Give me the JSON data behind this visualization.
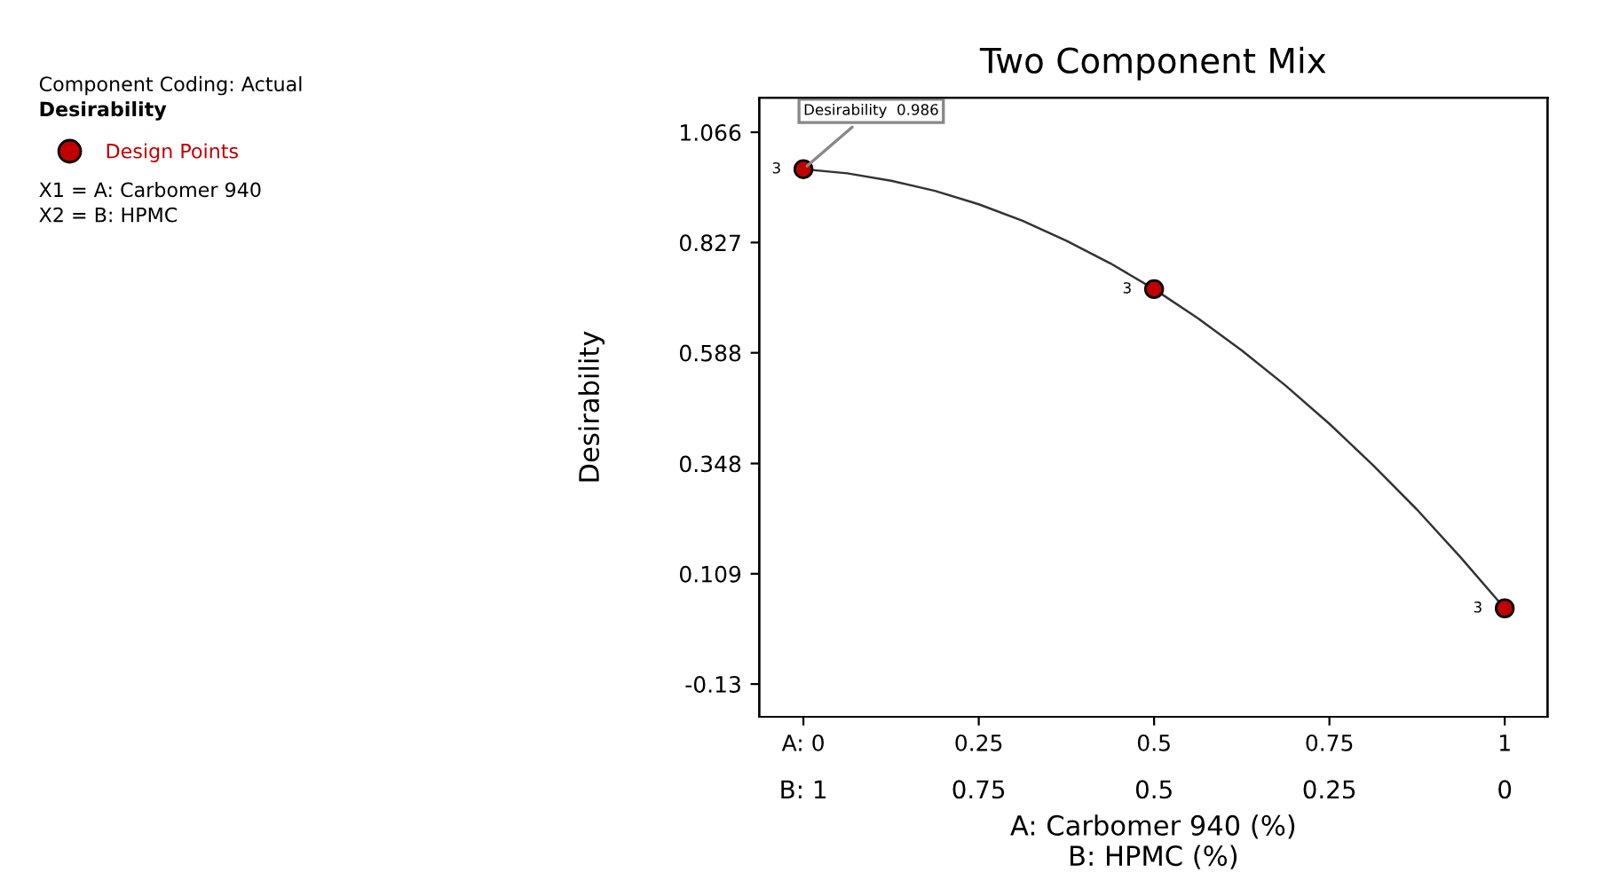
{
  "chart_data": {
    "type": "scatter",
    "title": "Two Component Mix",
    "xlabel": "A: Carbomer 940 (%)\nB: HPMC (%)",
    "ylabel": "Desirability",
    "x": [
      0,
      0.5,
      1
    ],
    "series": [
      {
        "name": "Design Points",
        "color": "#c00000",
        "values": [
          0.986,
          0.726,
          0.034
        ]
      },
      {
        "type": "line",
        "marker": "none",
        "color": "#333333",
        "x": [
          0,
          0.0625,
          0.125,
          0.1875,
          0.25,
          0.3125,
          0.375,
          0.4375,
          0.5,
          0.5625,
          0.625,
          0.6875,
          0.75,
          0.8125,
          0.875,
          0.9375,
          1
        ],
        "values": [
          0.986,
          0.977,
          0.961,
          0.939,
          0.91,
          0.874,
          0.831,
          0.782,
          0.726,
          0.663,
          0.593,
          0.517,
          0.434,
          0.344,
          0.248,
          0.144,
          0.034
        ]
      }
    ],
    "xlim": [
      -0.063,
      1.061
    ],
    "ylim": [
      -0.201,
      1.141
    ],
    "xticks": [
      {
        "value": 0,
        "label": "A: 0"
      },
      0.25,
      0.5,
      0.75,
      1
    ],
    "x2lim": [
      1.063,
      -0.061
    ],
    "x2ticks": [
      {
        "value": 1,
        "label": "B: 1"
      },
      0.75,
      0.5,
      0.25,
      0
    ],
    "yticks": [
      -0.13,
      0.109,
      0.348,
      0.588,
      0.827,
      1.066
    ],
    "annotations": [
      "Component Coding: Actual",
      "Desirability",
      "X1 = A: Carbomer 940",
      "X2 = B: HPMC",
      {
        "text": "Desirability  0.986",
        "x": 0,
        "y": 0.986
      },
      {
        "text": "3",
        "x": 0,
        "y": 0.986
      },
      {
        "text": "3",
        "x": 0.5,
        "y": 0.726
      },
      {
        "text": "3",
        "x": 1,
        "y": 0.034
      }
    ],
    "legend": "left",
    "marker": "circle",
    "grid": false
  }
}
